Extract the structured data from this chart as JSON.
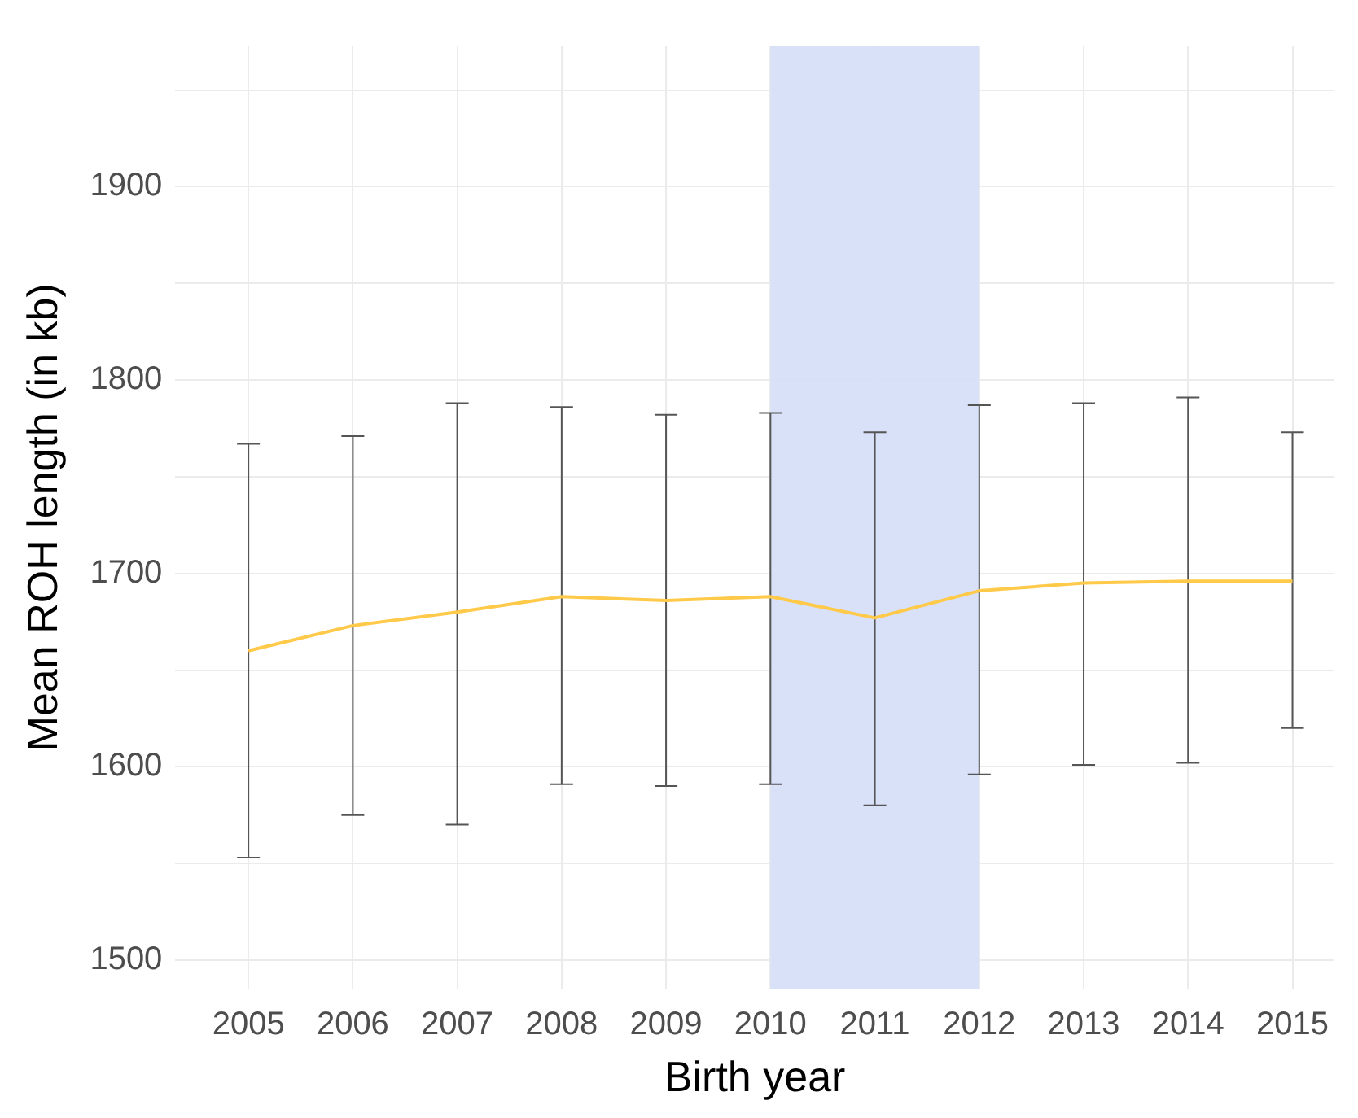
{
  "chart_data": {
    "type": "line",
    "xlabel": "Birth year",
    "ylabel": "Mean ROH length (in kb)",
    "x": [
      2005,
      2006,
      2007,
      2008,
      2009,
      2010,
      2011,
      2012,
      2013,
      2014,
      2015
    ],
    "series": [
      {
        "color": "#ffc94a",
        "values": [
          1660,
          1673,
          1680,
          1688,
          1686,
          1688,
          1677,
          1691,
          1695,
          1696,
          1696
        ],
        "errors": [
          [
            1553,
            1767
          ],
          [
            1575,
            1771
          ],
          [
            1570,
            1788
          ],
          [
            1591,
            1786
          ],
          [
            1590,
            1782
          ],
          [
            1591,
            1783
          ],
          [
            1580,
            1773
          ],
          [
            1596,
            1787
          ],
          [
            1601,
            1788
          ],
          [
            1602,
            1791
          ],
          [
            1620,
            1773
          ]
        ]
      }
    ],
    "xlim": [
      2004.3,
      2015.4
    ],
    "xticks": [
      2005,
      2006,
      2007,
      2008,
      2009,
      2010,
      2011,
      2012,
      2013,
      2014,
      2015
    ],
    "ylim": [
      1485,
      1973
    ],
    "yticks": [
      1500,
      {
        "value": 1550,
        "label": null
      },
      1600,
      {
        "value": 1650,
        "label": null
      },
      1700,
      {
        "value": 1750,
        "label": null
      },
      1800,
      {
        "value": 1850,
        "label": null
      },
      1900,
      {
        "value": 1950,
        "label": null
      }
    ],
    "bands": [
      {
        "axis": "x",
        "from": 2010,
        "to": 2012,
        "color": "#d6dff8"
      }
    ],
    "grid": true,
    "legend": false,
    "marker": "none",
    "line_style": "solid"
  }
}
